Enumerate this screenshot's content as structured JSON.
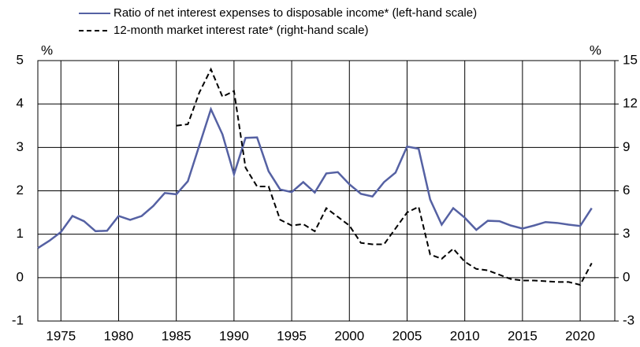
{
  "chart_data": {
    "type": "line",
    "y_label": "%",
    "y2_label": "%",
    "x": [
      1973,
      1974,
      1975,
      1976,
      1977,
      1978,
      1979,
      1980,
      1981,
      1982,
      1983,
      1984,
      1985,
      1986,
      1987,
      1988,
      1989,
      1990,
      1991,
      1992,
      1993,
      1994,
      1995,
      1996,
      1997,
      1998,
      1999,
      2000,
      2001,
      2002,
      2003,
      2004,
      2005,
      2006,
      2007,
      2008,
      2009,
      2010,
      2011,
      2012,
      2013,
      2014,
      2015,
      2016,
      2017,
      2018,
      2019,
      2020,
      2021
    ],
    "series": [
      {
        "name": "Ratio of net interest expenses to disposable income* (left-hand scale)",
        "color": "#5561a3",
        "dash": false,
        "axis": "y",
        "values": [
          0.68,
          0.85,
          1.05,
          1.42,
          1.3,
          1.07,
          1.08,
          1.42,
          1.33,
          1.42,
          1.65,
          1.95,
          1.92,
          2.22,
          3.05,
          3.88,
          3.3,
          2.38,
          3.22,
          3.23,
          2.45,
          2.03,
          1.97,
          2.2,
          1.96,
          2.4,
          2.43,
          2.15,
          1.93,
          1.87,
          2.2,
          2.42,
          3.02,
          2.97,
          1.8,
          1.22,
          1.6,
          1.38,
          1.1,
          1.31,
          1.3,
          1.2,
          1.13,
          1.2,
          1.28,
          1.26,
          1.22,
          1.19,
          1.6
        ]
      },
      {
        "name": "12-month market interest rate* (right-hand scale)",
        "color": "#000000",
        "dash": true,
        "axis": "y2",
        "values": [
          null,
          null,
          null,
          null,
          null,
          null,
          null,
          null,
          null,
          null,
          null,
          null,
          10.5,
          10.6,
          12.8,
          14.4,
          12.5,
          12.9,
          7.6,
          6.3,
          6.3,
          4.0,
          3.6,
          3.7,
          3.2,
          4.8,
          4.2,
          3.6,
          2.4,
          2.3,
          2.3,
          3.4,
          4.5,
          4.9,
          1.6,
          1.3,
          2.0,
          1.1,
          0.6,
          0.5,
          0.2,
          -0.1,
          -0.2,
          -0.2,
          -0.25,
          -0.3,
          -0.3,
          -0.5,
          1.0
        ]
      }
    ],
    "xlim": [
      1973,
      2023
    ],
    "xticks": [
      1975,
      1980,
      1985,
      1990,
      1995,
      2000,
      2005,
      2010,
      2015,
      2020
    ],
    "ylim": [
      -1,
      5
    ],
    "yticks": [
      -1,
      0,
      1,
      2,
      3,
      4,
      5
    ],
    "y2lim": [
      -3,
      15
    ],
    "y2ticks": [
      -3,
      0,
      3,
      6,
      9,
      12,
      15
    ],
    "grid": true,
    "legend": "top"
  }
}
